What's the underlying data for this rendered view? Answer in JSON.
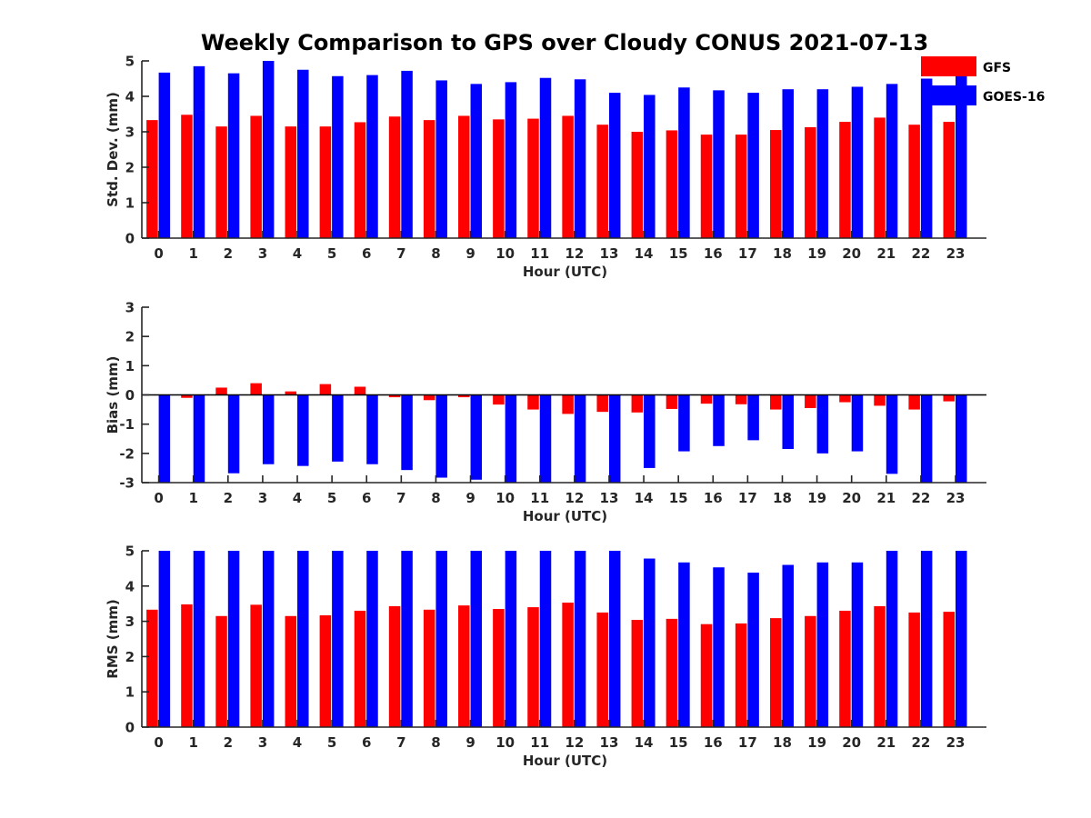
{
  "chart_data": {
    "title": "Weekly Comparison to GPS over Cloudy CONUS 2021-07-13",
    "legend": {
      "placement": "top-right",
      "entries": [
        {
          "name": "GFS",
          "color": "#ff0000"
        },
        {
          "name": "GOES-16",
          "color": "#0000ff"
        }
      ]
    },
    "categories": [
      "0",
      "1",
      "2",
      "3",
      "4",
      "5",
      "6",
      "7",
      "8",
      "9",
      "10",
      "11",
      "12",
      "13",
      "14",
      "15",
      "16",
      "17",
      "18",
      "19",
      "20",
      "21",
      "22",
      "23"
    ],
    "panels": [
      {
        "type": "bar",
        "xlabel": "Hour (UTC)",
        "ylabel": "Std. Dev. (mm)",
        "ylim": [
          0,
          5
        ],
        "yticks": [
          0,
          1,
          2,
          3,
          4,
          5
        ],
        "grid": false,
        "series": [
          {
            "name": "GFS",
            "color": "#ff0000",
            "values": [
              3.33,
              3.48,
              3.15,
              3.45,
              3.15,
              3.15,
              3.27,
              3.43,
              3.33,
              3.45,
              3.35,
              3.37,
              3.45,
              3.2,
              3.0,
              3.04,
              2.92,
              2.92,
              3.05,
              3.13,
              3.28,
              3.4,
              3.2,
              3.28
            ]
          },
          {
            "name": "GOES-16",
            "color": "#0000ff",
            "values": [
              4.67,
              4.85,
              4.65,
              5.0,
              4.75,
              4.57,
              4.6,
              4.72,
              4.45,
              4.35,
              4.4,
              4.52,
              4.48,
              4.1,
              4.04,
              4.25,
              4.17,
              4.1,
              4.2,
              4.2,
              4.27,
              4.35,
              4.5,
              4.62
            ]
          }
        ]
      },
      {
        "type": "bar",
        "xlabel": "Hour (UTC)",
        "ylabel": "Bias (mm)",
        "ylim": [
          -3,
          3
        ],
        "yticks": [
          -3,
          -2,
          -1,
          0,
          1,
          2,
          3
        ],
        "grid": false,
        "series": [
          {
            "name": "GFS",
            "color": "#ff0000",
            "values": [
              0.0,
              -0.1,
              0.25,
              0.4,
              0.12,
              0.37,
              0.28,
              -0.08,
              -0.18,
              -0.08,
              -0.33,
              -0.5,
              -0.65,
              -0.58,
              -0.6,
              -0.48,
              -0.3,
              -0.32,
              -0.5,
              -0.45,
              -0.25,
              -0.37,
              -0.5,
              -0.22
            ]
          },
          {
            "name": "GOES-16",
            "color": "#0000ff",
            "values": [
              -3.0,
              -3.0,
              -2.68,
              -2.37,
              -2.43,
              -2.28,
              -2.37,
              -2.57,
              -2.83,
              -2.9,
              -3.0,
              -3.0,
              -3.0,
              -3.0,
              -2.5,
              -1.93,
              -1.75,
              -1.55,
              -1.85,
              -2.0,
              -1.93,
              -2.7,
              -3.0,
              -3.0
            ]
          }
        ]
      },
      {
        "type": "bar",
        "xlabel": "Hour (UTC)",
        "ylabel": "RMS (mm)",
        "ylim": [
          0,
          5
        ],
        "yticks": [
          0,
          1,
          2,
          3,
          4,
          5
        ],
        "grid": false,
        "series": [
          {
            "name": "GFS",
            "color": "#ff0000",
            "values": [
              3.33,
              3.48,
              3.15,
              3.47,
              3.15,
              3.17,
              3.3,
              3.43,
              3.33,
              3.45,
              3.35,
              3.4,
              3.53,
              3.25,
              3.04,
              3.07,
              2.92,
              2.94,
              3.09,
              3.15,
              3.3,
              3.43,
              3.25,
              3.27
            ]
          },
          {
            "name": "GOES-16",
            "color": "#0000ff",
            "values": [
              5.0,
              5.0,
              5.0,
              5.0,
              5.0,
              5.0,
              5.0,
              5.0,
              5.0,
              5.0,
              5.0,
              5.0,
              5.0,
              5.0,
              4.78,
              4.67,
              4.53,
              4.38,
              4.6,
              4.67,
              4.67,
              5.0,
              5.0,
              5.0
            ]
          }
        ]
      }
    ]
  }
}
